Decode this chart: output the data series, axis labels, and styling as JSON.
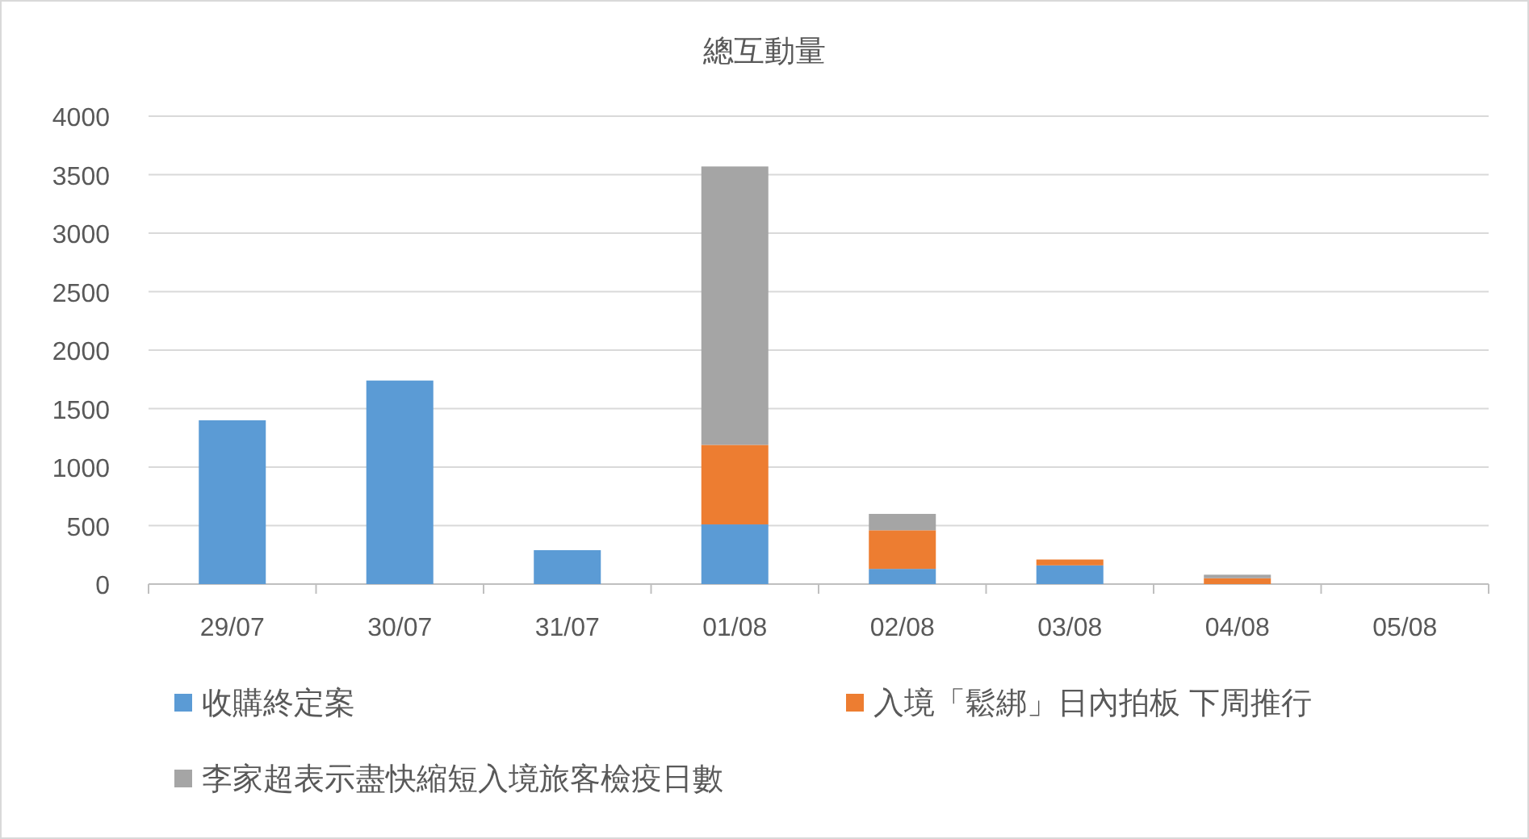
{
  "chart_data": {
    "type": "bar",
    "title": "總互動量",
    "stacked": true,
    "categories": [
      "29/07",
      "30/07",
      "31/07",
      "01/08",
      "02/08",
      "03/08",
      "04/08",
      "05/08"
    ],
    "series": [
      {
        "name": "收購終定案",
        "color": "#5b9bd5",
        "values": [
          1400,
          1740,
          290,
          510,
          130,
          160,
          0,
          0
        ]
      },
      {
        "name": "入境「鬆綁」日內拍板 下周推行",
        "color": "#ed7d31",
        "values": [
          0,
          0,
          0,
          680,
          330,
          50,
          50,
          0
        ]
      },
      {
        "name": "李家超表示盡快縮短入境旅客檢疫日數",
        "color": "#a5a5a5",
        "values": [
          0,
          0,
          0,
          2380,
          140,
          0,
          30,
          0
        ]
      }
    ],
    "ylim": [
      0,
      4000
    ],
    "yticks": [
      0,
      500,
      1000,
      1500,
      2000,
      2500,
      3000,
      3500,
      4000
    ],
    "grid": "y",
    "legend": "bottom"
  }
}
